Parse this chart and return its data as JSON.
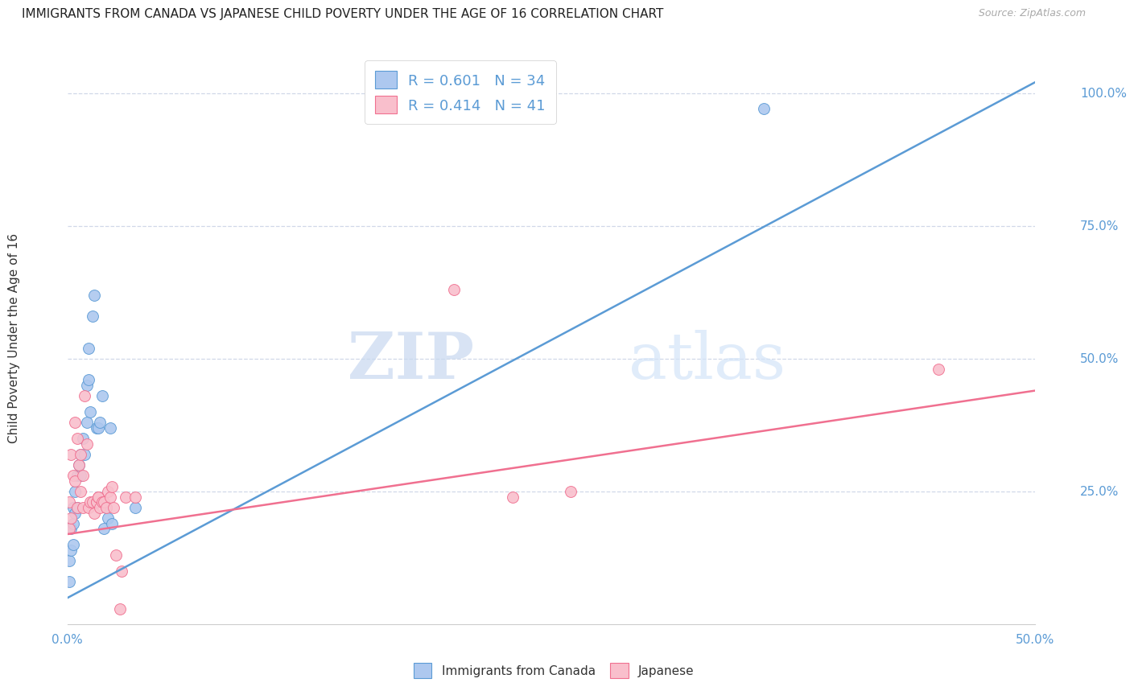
{
  "title": "IMMIGRANTS FROM CANADA VS JAPANESE CHILD POVERTY UNDER THE AGE OF 16 CORRELATION CHART",
  "source": "Source: ZipAtlas.com",
  "ylabel": "Child Poverty Under the Age of 16",
  "ytick_labels": [
    "100.0%",
    "75.0%",
    "50.0%",
    "25.0%"
  ],
  "ytick_values": [
    1.0,
    0.75,
    0.5,
    0.25
  ],
  "xlim": [
    0.0,
    0.5
  ],
  "ylim": [
    0.0,
    1.08
  ],
  "canada_R": 0.601,
  "canada_N": 34,
  "japanese_R": 0.414,
  "japanese_N": 41,
  "canada_color": "#adc8ef",
  "japanese_color": "#f9bfcc",
  "canada_line_color": "#5b9bd5",
  "japanese_line_color": "#f07090",
  "legend_label_canada": "Immigrants from Canada",
  "legend_label_japanese": "Japanese",
  "watermark_zip": "ZIP",
  "watermark_atlas": "atlas",
  "canada_scatter_x": [
    0.001,
    0.001,
    0.002,
    0.002,
    0.003,
    0.003,
    0.003,
    0.004,
    0.004,
    0.005,
    0.005,
    0.006,
    0.007,
    0.007,
    0.008,
    0.009,
    0.01,
    0.01,
    0.011,
    0.011,
    0.012,
    0.013,
    0.014,
    0.015,
    0.016,
    0.017,
    0.018,
    0.019,
    0.02,
    0.021,
    0.022,
    0.023,
    0.035,
    0.36
  ],
  "canada_scatter_y": [
    0.08,
    0.12,
    0.14,
    0.18,
    0.15,
    0.19,
    0.22,
    0.21,
    0.25,
    0.22,
    0.28,
    0.3,
    0.28,
    0.32,
    0.35,
    0.32,
    0.38,
    0.45,
    0.46,
    0.52,
    0.4,
    0.58,
    0.62,
    0.37,
    0.37,
    0.38,
    0.43,
    0.18,
    0.22,
    0.2,
    0.37,
    0.19,
    0.22,
    0.97
  ],
  "japanese_scatter_x": [
    0.001,
    0.001,
    0.002,
    0.002,
    0.003,
    0.004,
    0.004,
    0.005,
    0.005,
    0.006,
    0.007,
    0.007,
    0.008,
    0.008,
    0.009,
    0.01,
    0.011,
    0.012,
    0.013,
    0.014,
    0.015,
    0.015,
    0.016,
    0.016,
    0.017,
    0.018,
    0.019,
    0.02,
    0.021,
    0.022,
    0.023,
    0.024,
    0.025,
    0.027,
    0.028,
    0.03,
    0.035,
    0.2,
    0.23,
    0.26,
    0.45
  ],
  "japanese_scatter_y": [
    0.18,
    0.23,
    0.2,
    0.32,
    0.28,
    0.27,
    0.38,
    0.22,
    0.35,
    0.3,
    0.32,
    0.25,
    0.22,
    0.28,
    0.43,
    0.34,
    0.22,
    0.23,
    0.23,
    0.21,
    0.23,
    0.23,
    0.24,
    0.24,
    0.22,
    0.23,
    0.23,
    0.22,
    0.25,
    0.24,
    0.26,
    0.22,
    0.13,
    0.03,
    0.1,
    0.24,
    0.24,
    0.63,
    0.24,
    0.25,
    0.48
  ],
  "canada_trend_x": [
    0.0,
    0.5
  ],
  "canada_trend_y": [
    0.05,
    1.02
  ],
  "japanese_trend_x": [
    0.0,
    0.5
  ],
  "japanese_trend_y": [
    0.17,
    0.44
  ],
  "xtick_positions": [
    0.0,
    0.1,
    0.2,
    0.3,
    0.4,
    0.5
  ],
  "xtick_labels_visible": [
    "0.0%",
    "",
    "",
    "",
    "",
    "50.0%"
  ],
  "grid_color": "#d0d8e8",
  "spine_color": "#cccccc"
}
